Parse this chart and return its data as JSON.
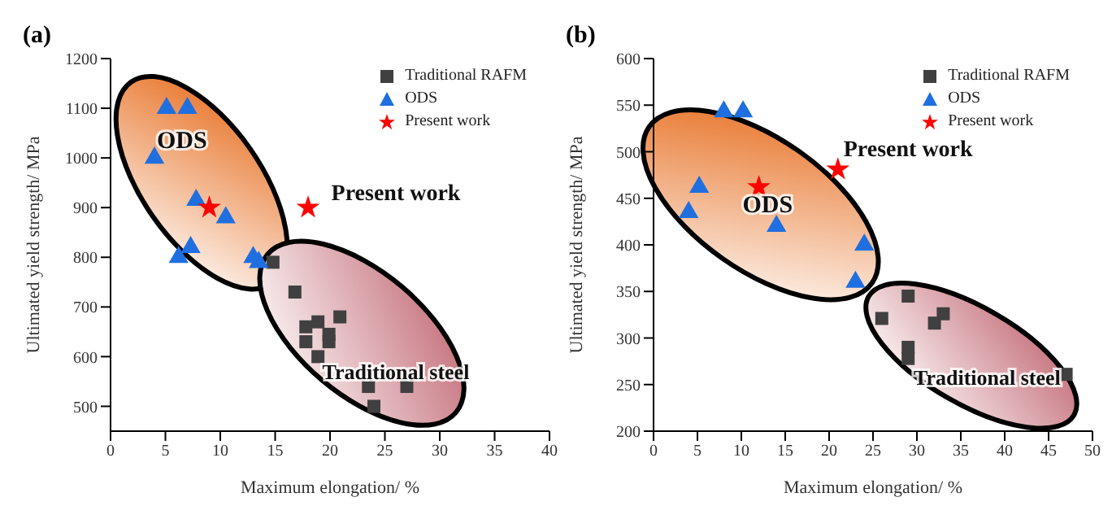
{
  "chart_data": [
    {
      "type": "scatter",
      "title": "(a)",
      "xlabel": "Maximum elongation/ %",
      "ylabel": "Ultimated yield strength/ MPa",
      "xlim": [
        0,
        40
      ],
      "xticks": [
        0,
        5,
        10,
        15,
        20,
        25,
        30,
        35,
        40
      ],
      "ylim": [
        450,
        1200
      ],
      "yticks": [
        500,
        600,
        700,
        800,
        900,
        1000,
        1100,
        1200
      ],
      "legend": "top right",
      "grid": false,
      "series": [
        {
          "name": "Traditional RAFM",
          "color": "#404040",
          "marker": "square",
          "x": [
            14.8,
            16.8,
            17.8,
            18.9,
            17.8,
            20.9,
            19.9,
            19.9,
            18.9,
            23.5,
            27,
            24
          ],
          "values": [
            790,
            730,
            660,
            670,
            630,
            680,
            645,
            630,
            600,
            540,
            540,
            500
          ]
        },
        {
          "name": "ODS",
          "color": "#1f6fe0",
          "marker": "triangle",
          "x": [
            5.1,
            7,
            4,
            7.8,
            10.5,
            7.3,
            6.2,
            13,
            13.5
          ],
          "values": [
            1100,
            1100,
            1000,
            915,
            880,
            820,
            800,
            800,
            790
          ]
        },
        {
          "name": "Present work",
          "color": "#ff0000",
          "marker": "star",
          "x": [
            9,
            18
          ],
          "values": [
            900,
            900
          ]
        }
      ],
      "annotations": [
        "ODS",
        "Present work",
        "Traditional steel"
      ]
    },
    {
      "type": "scatter",
      "title": "(b)",
      "xlabel": "Maximum elongation/ %",
      "ylabel": "Ultimated yield strength/ MPa",
      "xlim": [
        0,
        50
      ],
      "xticks": [
        0,
        5,
        10,
        15,
        20,
        25,
        30,
        35,
        40,
        45,
        50
      ],
      "ylim": [
        200,
        600
      ],
      "yticks": [
        200,
        250,
        300,
        350,
        400,
        450,
        500,
        550,
        600
      ],
      "legend": "top right",
      "grid": false,
      "series": [
        {
          "name": "Traditional RAFM",
          "color": "#404040",
          "marker": "square",
          "x": [
            29,
            26,
            33,
            32,
            29,
            29,
            47
          ],
          "values": [
            345,
            321,
            326,
            316,
            290,
            278,
            261
          ]
        },
        {
          "name": "ODS",
          "color": "#1f6fe0",
          "marker": "triangle",
          "x": [
            8,
            10.2,
            5.2,
            4,
            14,
            24,
            23
          ],
          "values": [
            543,
            543,
            462,
            435,
            420,
            400,
            360
          ]
        },
        {
          "name": "Present work",
          "color": "#ff0000",
          "marker": "star",
          "x": [
            12,
            21
          ],
          "values": [
            462,
            481
          ]
        }
      ],
      "annotations": [
        "ODS",
        "Present work",
        "Traditional steel"
      ]
    }
  ]
}
